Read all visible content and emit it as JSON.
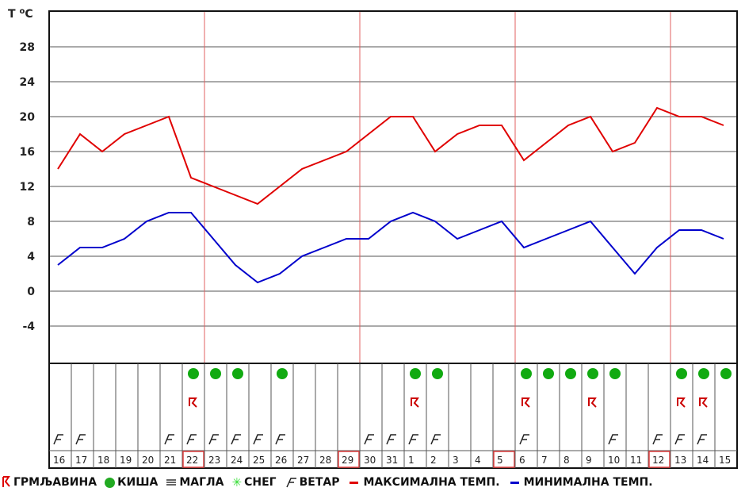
{
  "chart_data": {
    "type": "line",
    "ylabel": "T °C",
    "yticks": [
      28,
      24,
      20,
      16,
      12,
      8,
      4,
      0,
      -4
    ],
    "ylim": [
      -8,
      32
    ],
    "grid": true,
    "categories": [
      "16",
      "17",
      "18",
      "19",
      "20",
      "21",
      "22",
      "23",
      "24",
      "25",
      "26",
      "27",
      "28",
      "29",
      "30",
      "31",
      "1",
      "2",
      "3",
      "4",
      "5",
      "6",
      "7",
      "8",
      "9",
      "10",
      "11",
      "12",
      "13",
      "14",
      "15"
    ],
    "highlighted_days": [
      "22",
      "29",
      "5",
      "12"
    ],
    "series": [
      {
        "name": "МАКСИМАЛНА ТЕМП.",
        "color": "#e00000",
        "values": [
          14,
          18,
          16,
          18,
          19,
          20,
          13,
          12,
          11,
          10,
          12,
          14,
          15,
          16,
          18,
          20,
          20,
          16,
          18,
          19,
          19,
          15,
          17,
          19,
          20,
          16,
          17,
          21,
          20,
          20,
          19
        ]
      },
      {
        "name": "МИНИМАЛНА ТЕМП.",
        "color": "#0000cc",
        "values": [
          3,
          5,
          5,
          6,
          8,
          9,
          9,
          6,
          3,
          1,
          2,
          4,
          5,
          6,
          6,
          8,
          9,
          8,
          6,
          7,
          8,
          5,
          6,
          7,
          8,
          5,
          2,
          5,
          7,
          7,
          6
        ]
      }
    ],
    "weather": {
      "rain": [
        "22",
        "23",
        "24",
        "26",
        "1",
        "2",
        "6",
        "7",
        "8",
        "9",
        "10",
        "13",
        "14",
        "15"
      ],
      "thunderstorm": [
        "22",
        "1",
        "6",
        "9",
        "13",
        "14"
      ],
      "wind": [
        "16",
        "17",
        "21",
        "22",
        "23",
        "24",
        "25",
        "26",
        "30",
        "31",
        "1",
        "2",
        "6",
        "10",
        "12",
        "13",
        "14"
      ]
    }
  },
  "legend": {
    "thunder": "ГРМЉАВИНА",
    "rain": "КИША",
    "fog": "МАГЛА",
    "snow": "СНЕГ",
    "wind": "ВЕТАР",
    "max": "МАКСИМАЛНА ТЕМП.",
    "min": "МИНИМАЛНА ТЕМП."
  },
  "axis": {
    "unit_label": "T",
    "unit_sup": "o",
    "unit_c": "C"
  }
}
